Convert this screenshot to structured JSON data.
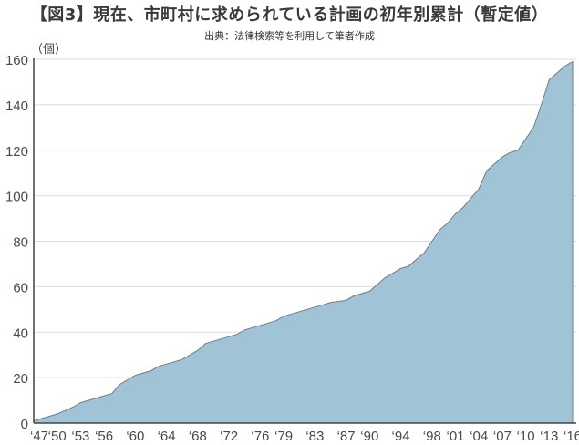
{
  "chart_data": {
    "type": "area",
    "title": "【図3】現在、市町村に求められている計画の初年別累計（暫定値）",
    "subtitle": "出典：法律検索等を利用して筆者作成",
    "ylabel": "（個）",
    "xlabel": "",
    "ylim": [
      0,
      160
    ],
    "xlim": [
      1947,
      2016
    ],
    "grid": true,
    "legend": null,
    "y_ticks": [
      "0",
      "20",
      "40",
      "60",
      "80",
      "100",
      "120",
      "140",
      "160"
    ],
    "x_ticks": [
      "‘47",
      "‘50",
      "‘53",
      "‘56",
      "‘60",
      "‘64",
      "‘68",
      "‘72",
      "‘76",
      "‘79",
      "‘83",
      "‘87",
      "‘90",
      "‘94",
      "‘98",
      "‘01",
      "‘04",
      "‘07",
      "‘10",
      "‘13",
      "‘16"
    ],
    "x_tick_years": [
      1947,
      1950,
      1953,
      1956,
      1960,
      1964,
      1968,
      1972,
      1976,
      1979,
      1983,
      1987,
      1990,
      1994,
      1998,
      2001,
      2004,
      2007,
      2010,
      2013,
      2016
    ],
    "x": [
      1947,
      1948,
      1949,
      1950,
      1951,
      1952,
      1953,
      1954,
      1955,
      1956,
      1957,
      1958,
      1959,
      1960,
      1961,
      1962,
      1963,
      1964,
      1965,
      1966,
      1967,
      1968,
      1969,
      1970,
      1971,
      1972,
      1973,
      1974,
      1975,
      1976,
      1977,
      1978,
      1979,
      1980,
      1981,
      1982,
      1983,
      1984,
      1985,
      1986,
      1987,
      1988,
      1989,
      1990,
      1991,
      1992,
      1993,
      1994,
      1995,
      1996,
      1997,
      1998,
      1999,
      2000,
      2001,
      2002,
      2003,
      2004,
      2005,
      2006,
      2007,
      2008,
      2009,
      2010,
      2011,
      2012,
      2013,
      2014,
      2015,
      2016
    ],
    "series": [
      {
        "name": "累計",
        "color": "#a0c4d6",
        "line_color": "#6a7f8a",
        "values": [
          1,
          2,
          3,
          4,
          5.5,
          7,
          9,
          10,
          11,
          12,
          13,
          17,
          19,
          21,
          22,
          23,
          25,
          26,
          27,
          28,
          30,
          32,
          35,
          36,
          37,
          38,
          39,
          41,
          42,
          43,
          44,
          45,
          47,
          48,
          49,
          50,
          51,
          52,
          53,
          53.5,
          54,
          56,
          57,
          58,
          61,
          64,
          66,
          68,
          69,
          72,
          75,
          80,
          85,
          88,
          92,
          95,
          99,
          103,
          111,
          114,
          117,
          119,
          120,
          125,
          130,
          140,
          151,
          154,
          157,
          159
        ]
      }
    ]
  }
}
